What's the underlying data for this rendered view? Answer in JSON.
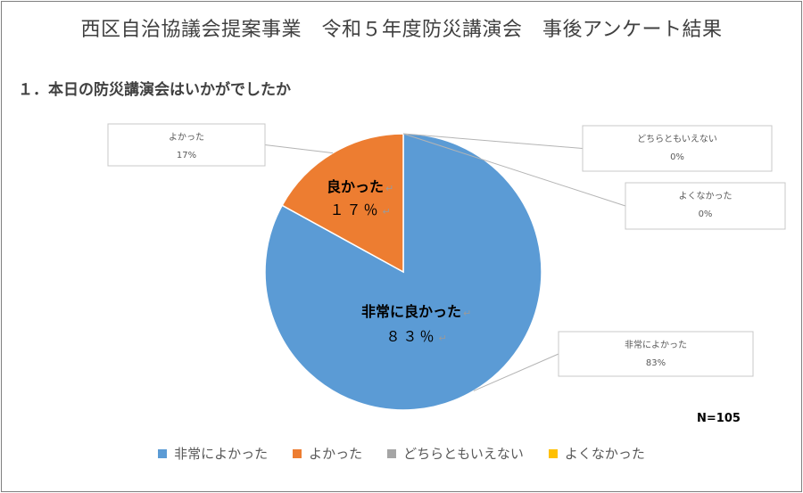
{
  "title": "西区自治協議会提案事業　令和５年度防災講演会　事後アンケート結果",
  "question": "１．本日の防災講演会はいかがでしたか",
  "sample_size": "N=105",
  "chart_data": {
    "type": "pie",
    "title": "",
    "slices": [
      {
        "name": "非常によかった",
        "value": 83,
        "pct_label": "83%",
        "color": "#5B9BD5",
        "inside_label": "非常に良かった",
        "inside_pct": "８３％"
      },
      {
        "name": "よかった",
        "value": 17,
        "pct_label": "17%",
        "color": "#ED7D31",
        "inside_label": "良かった",
        "inside_pct": "１７％"
      },
      {
        "name": "どちらともいえない",
        "value": 0,
        "pct_label": "0%",
        "color": "#A5A5A5"
      },
      {
        "name": "よくなかった",
        "value": 0,
        "pct_label": "0%",
        "color": "#FFC000"
      }
    ],
    "legend_position": "bottom"
  }
}
